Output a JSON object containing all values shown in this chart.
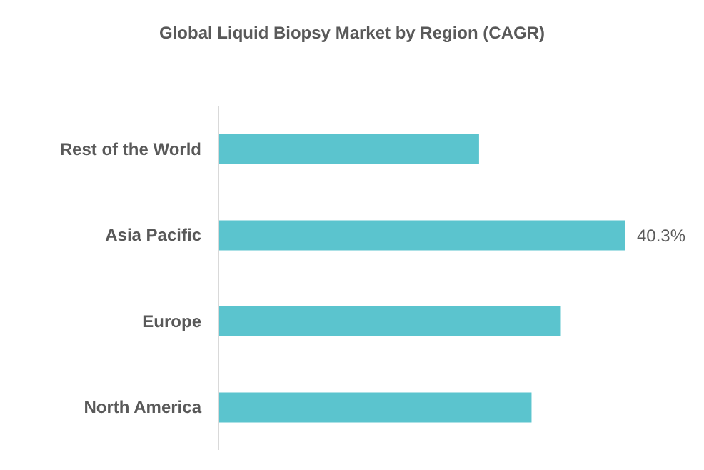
{
  "chart_data": {
    "type": "bar",
    "orientation": "horizontal",
    "title": "Global Liquid Biopsy Market by Region (CAGR)",
    "categories": [
      "Rest of the World",
      "Asia Pacific",
      "Europe",
      "North America"
    ],
    "values": [
      25.8,
      40.3,
      33.9,
      31.0
    ],
    "value_labels": [
      null,
      "40.3%",
      null,
      null
    ],
    "color": "#5bc4ce",
    "grid": false,
    "legend": false
  }
}
